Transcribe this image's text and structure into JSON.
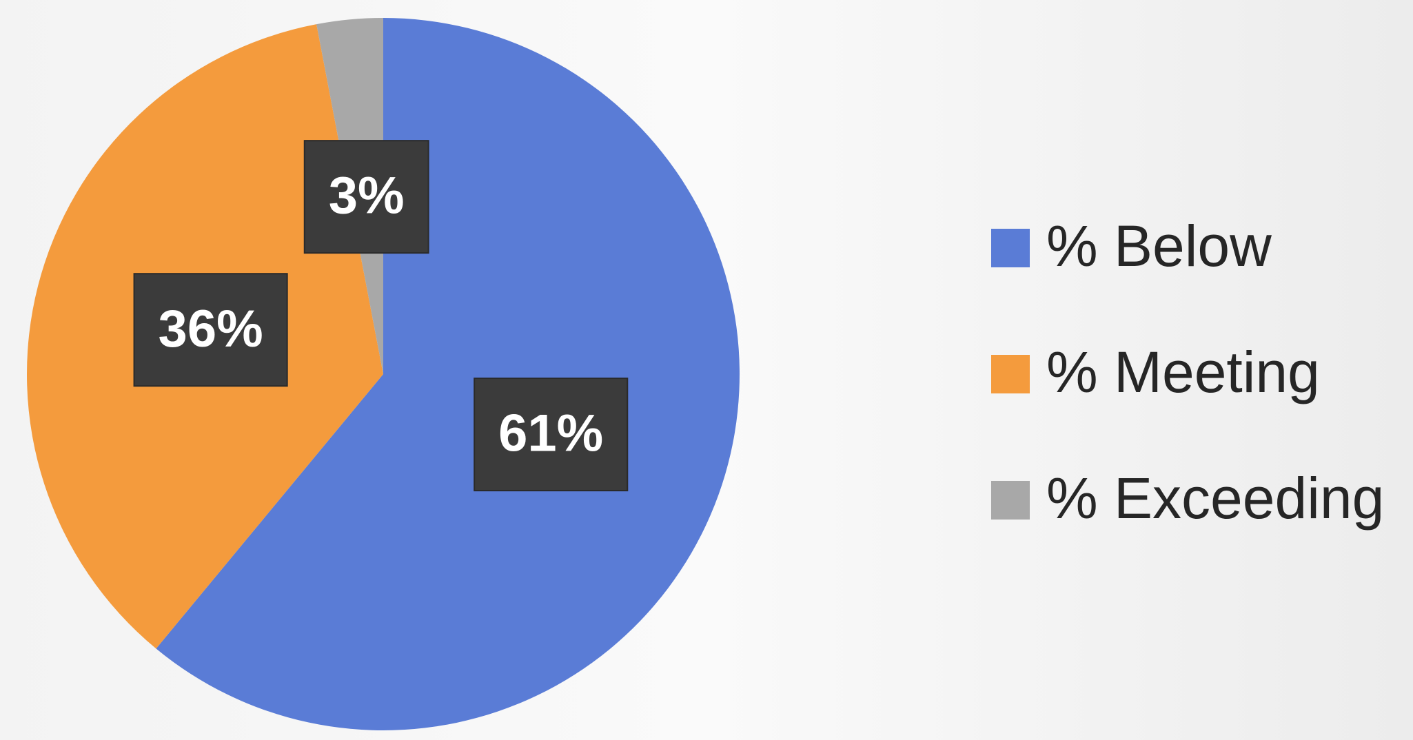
{
  "chart_data": {
    "type": "pie",
    "categories": [
      "% Below",
      "% Meeting",
      "% Exceeding"
    ],
    "values": [
      61,
      36,
      3
    ],
    "value_labels": [
      "61%",
      "36%",
      "3%"
    ],
    "colors": [
      "#5a7cd6",
      "#f49b3d",
      "#a8a8a8"
    ],
    "legend": "right"
  }
}
